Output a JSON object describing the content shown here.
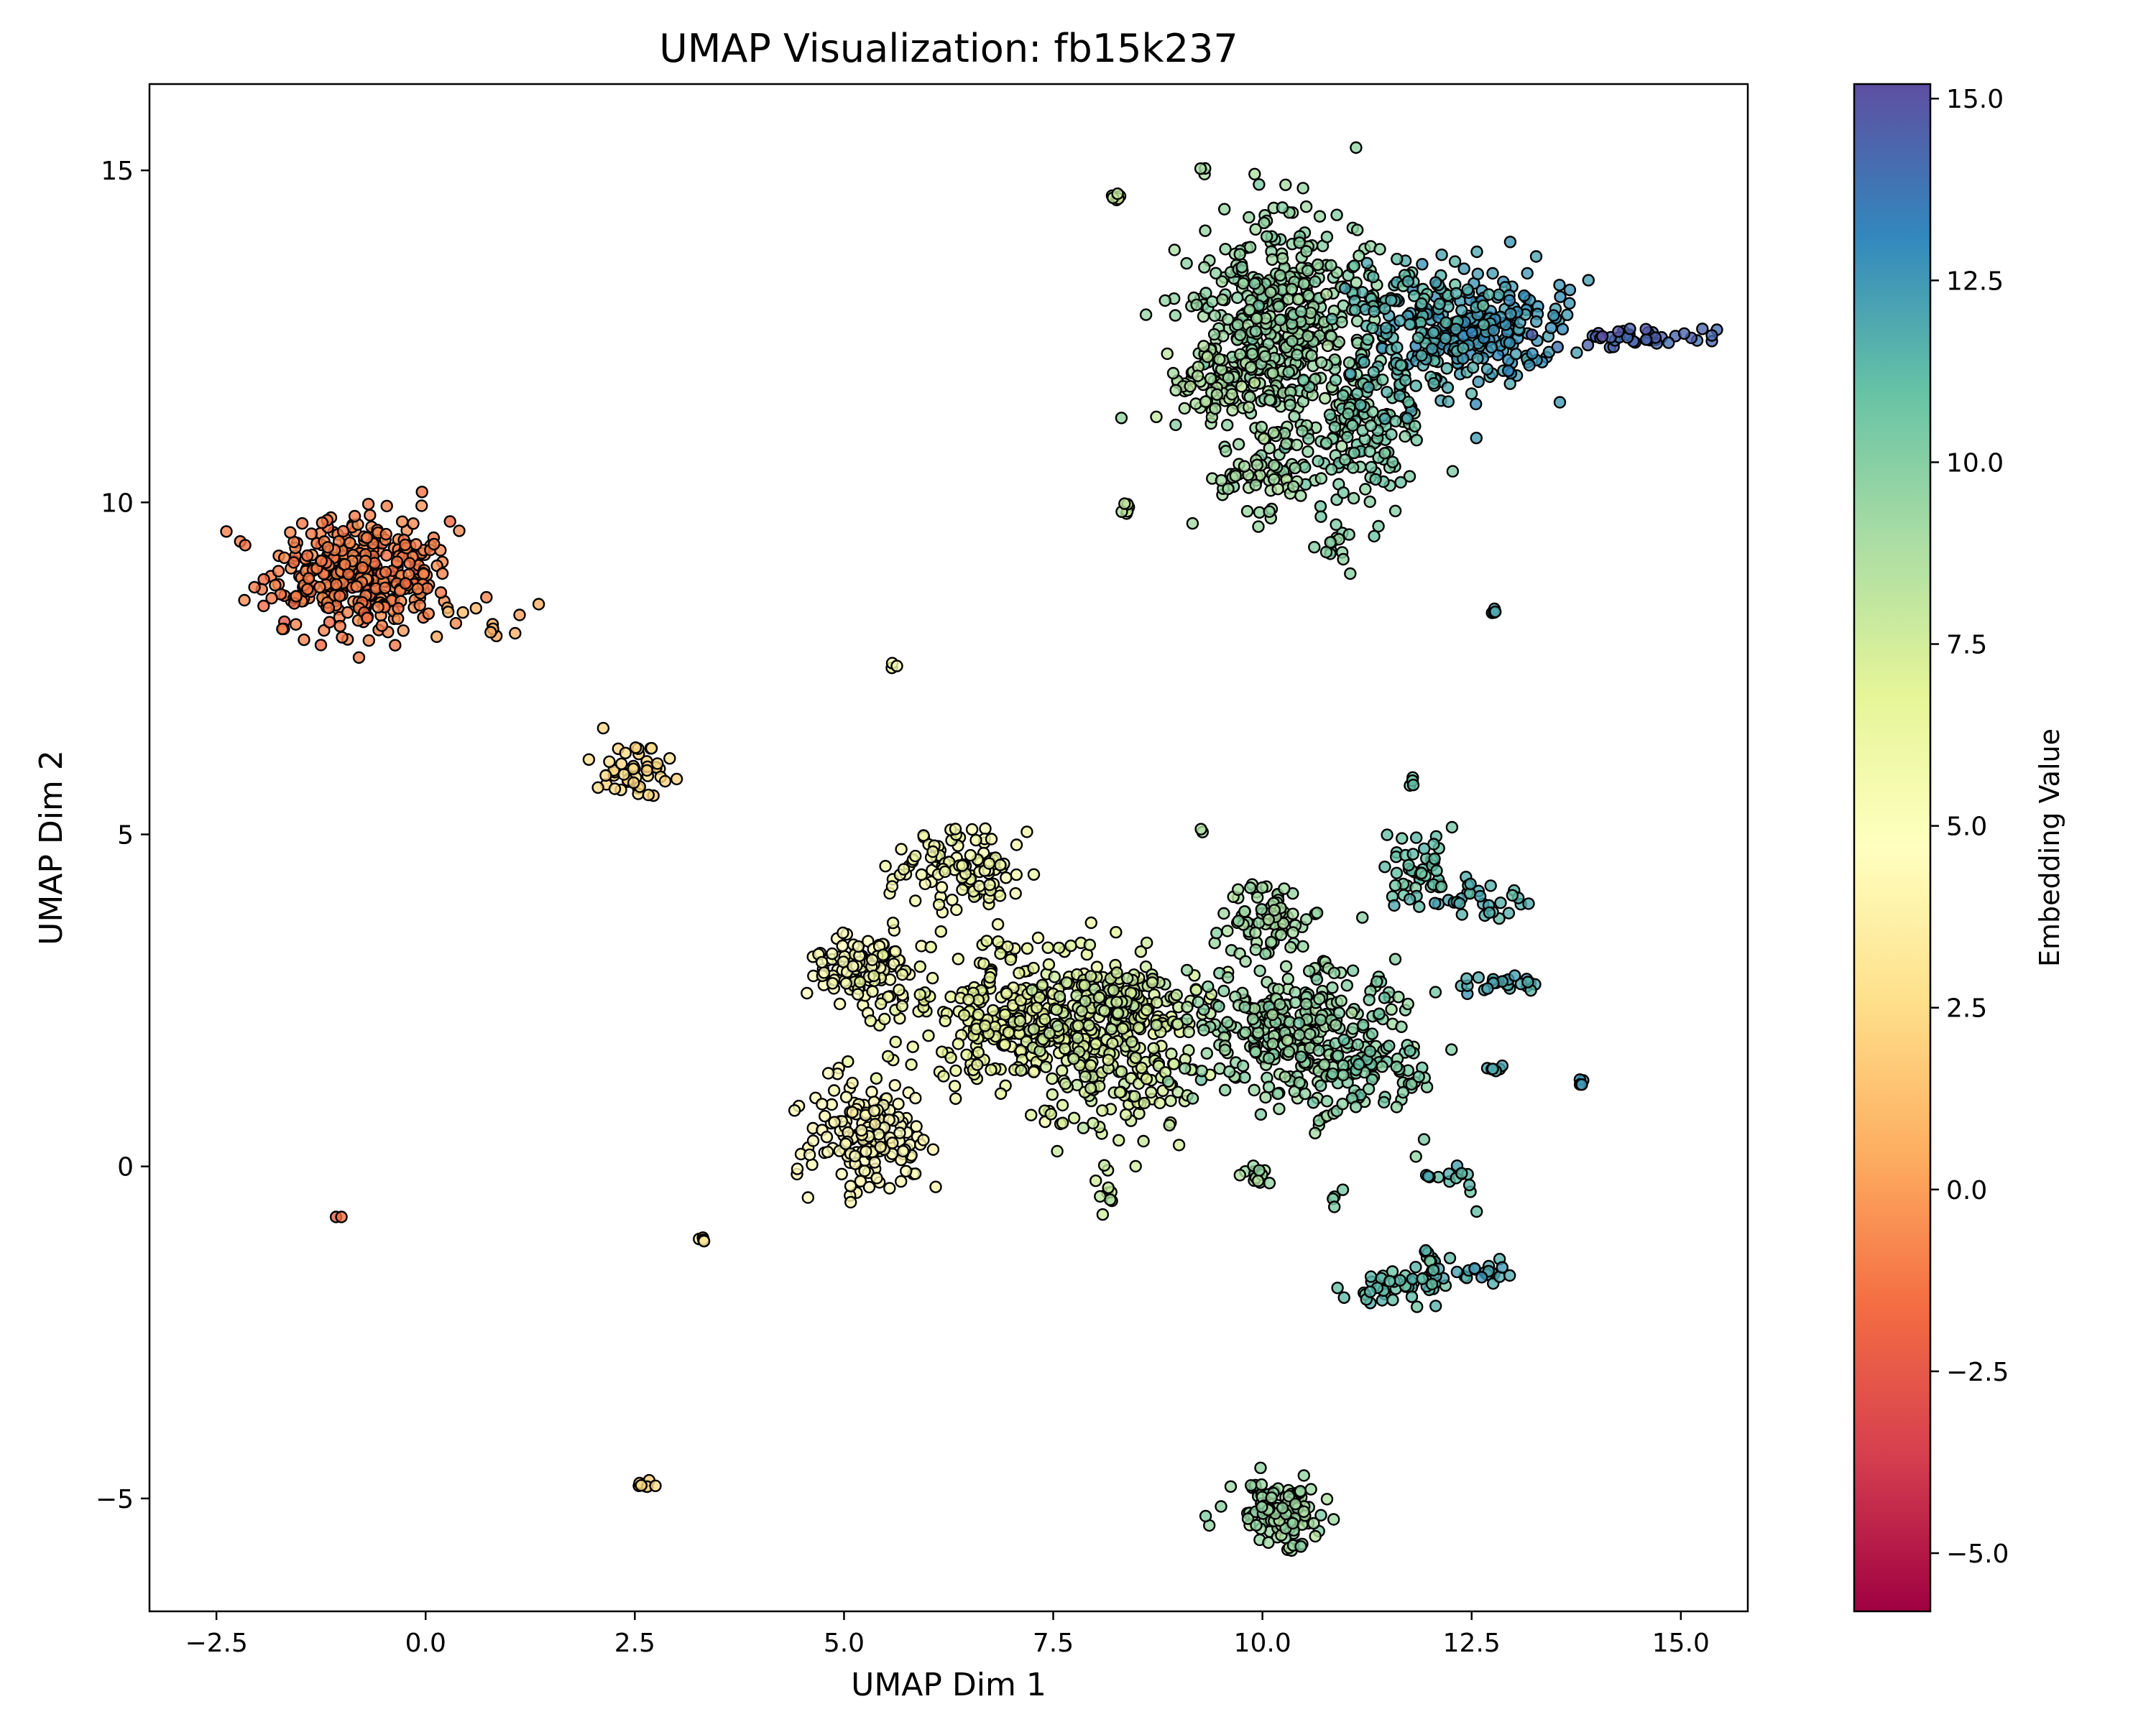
{
  "chart_data": {
    "type": "scatter",
    "title": "UMAP Visualization: fb15k237",
    "xlabel": "UMAP Dim 1",
    "ylabel": "UMAP Dim 2",
    "xlim": [
      -3.3,
      15.8
    ],
    "ylim": [
      -6.7,
      16.3
    ],
    "x_ticks": [
      -2.5,
      0.0,
      2.5,
      5.0,
      7.5,
      10.0,
      12.5,
      15.0
    ],
    "x_tick_labels": [
      "−2.5",
      "0.0",
      "2.5",
      "5.0",
      "7.5",
      "10.0",
      "12.5",
      "15.0"
    ],
    "y_ticks": [
      -5,
      0,
      5,
      10,
      15
    ],
    "y_tick_labels": [
      "−5",
      "0",
      "5",
      "10",
      "15"
    ],
    "grid": false,
    "colormap": "Spectral",
    "marker_edge_color": "#000000",
    "colorbar": {
      "label": "Embedding Value",
      "range": [
        -5.8,
        15.2
      ],
      "ticks": [
        -5.0,
        -2.5,
        0.0,
        2.5,
        5.0,
        7.5,
        10.0,
        12.5,
        15.0
      ],
      "tick_labels": [
        "−5.0",
        "−2.5",
        "0.0",
        "2.5",
        "5.0",
        "7.5",
        "10.0",
        "12.5",
        "15.0"
      ],
      "colors": [
        "#9e0142",
        "#d53e4f",
        "#f46d43",
        "#fdae61",
        "#fee08b",
        "#ffffbf",
        "#e6f598",
        "#abdda4",
        "#66c2a5",
        "#3288bd",
        "#5e4fa2"
      ]
    },
    "clusters": [
      {
        "cx": -0.8,
        "cy": 8.9,
        "sx": 0.55,
        "sy": 0.45,
        "n": 360,
        "value": -1.0
      },
      {
        "cx": 0.6,
        "cy": 8.2,
        "sx": 0.25,
        "sy": 0.2,
        "n": 12,
        "value": 0.4
      },
      {
        "cx": 2.5,
        "cy": 6.0,
        "sx": 0.25,
        "sy": 0.2,
        "n": 45,
        "value": 2.3
      },
      {
        "cx": -1.05,
        "cy": -0.75,
        "sx": 0.02,
        "sy": 0.02,
        "n": 2,
        "value": -1.0
      },
      {
        "cx": 2.6,
        "cy": -4.8,
        "sx": 0.05,
        "sy": 0.05,
        "n": 8,
        "value": 2.5
      },
      {
        "cx": 3.3,
        "cy": -1.1,
        "sx": 0.03,
        "sy": 0.03,
        "n": 4,
        "value": 3.3
      },
      {
        "cx": 5.6,
        "cy": 7.55,
        "sx": 0.02,
        "sy": 0.02,
        "n": 3,
        "value": 5.5
      },
      {
        "cx": 5.3,
        "cy": 0.4,
        "sx": 0.35,
        "sy": 0.45,
        "n": 170,
        "value": 4.5
      },
      {
        "cx": 5.2,
        "cy": 3.0,
        "sx": 0.35,
        "sy": 0.25,
        "n": 110,
        "value": 5.0
      },
      {
        "cx": 6.4,
        "cy": 4.5,
        "sx": 0.4,
        "sy": 0.35,
        "n": 110,
        "value": 5.8
      },
      {
        "cx": 6.9,
        "cy": 2.3,
        "sx": 0.7,
        "sy": 0.55,
        "n": 260,
        "value": 6.5
      },
      {
        "cx": 8.2,
        "cy": 1.8,
        "sx": 0.55,
        "sy": 0.6,
        "n": 230,
        "value": 7.5
      },
      {
        "cx": 8.4,
        "cy": 2.5,
        "sx": 0.5,
        "sy": 0.3,
        "n": 100,
        "value": 7.8
      },
      {
        "cx": 10.1,
        "cy": 3.8,
        "sx": 0.25,
        "sy": 0.25,
        "n": 70,
        "value": 9.2
      },
      {
        "cx": 10.4,
        "cy": 2.0,
        "sx": 0.6,
        "sy": 0.6,
        "n": 280,
        "value": 9.5
      },
      {
        "cx": 11.3,
        "cy": 1.5,
        "sx": 0.4,
        "sy": 0.5,
        "n": 90,
        "value": 10.3
      },
      {
        "cx": 11.9,
        "cy": 4.4,
        "sx": 0.2,
        "sy": 0.25,
        "n": 50,
        "value": 11.0
      },
      {
        "cx": 12.6,
        "cy": 4.0,
        "sx": 0.3,
        "sy": 0.15,
        "n": 30,
        "value": 11.6
      },
      {
        "cx": 12.8,
        "cy": 2.75,
        "sx": 0.3,
        "sy": 0.05,
        "n": 25,
        "value": 12.0
      },
      {
        "cx": 12.8,
        "cy": 1.45,
        "sx": 0.05,
        "sy": 0.04,
        "n": 6,
        "value": 11.8
      },
      {
        "cx": 13.8,
        "cy": 1.25,
        "sx": 0.03,
        "sy": 0.03,
        "n": 4,
        "value": 12.6
      },
      {
        "cx": 11.8,
        "cy": 5.75,
        "sx": 0.04,
        "sy": 0.05,
        "n": 4,
        "value": 10.8
      },
      {
        "cx": 9.25,
        "cy": 5.05,
        "sx": 0.02,
        "sy": 0.02,
        "n": 2,
        "value": 8.8
      },
      {
        "cx": 8.1,
        "cy": -0.3,
        "sx": 0.05,
        "sy": 0.25,
        "n": 10,
        "value": 8.0
      },
      {
        "cx": 9.9,
        "cy": -0.15,
        "sx": 0.1,
        "sy": 0.1,
        "n": 14,
        "value": 9.2
      },
      {
        "cx": 10.9,
        "cy": -0.45,
        "sx": 0.04,
        "sy": 0.06,
        "n": 4,
        "value": 10.0
      },
      {
        "cx": 12.2,
        "cy": -0.1,
        "sx": 0.2,
        "sy": 0.25,
        "n": 14,
        "value": 11.5
      },
      {
        "cx": 11.7,
        "cy": -1.8,
        "sx": 0.4,
        "sy": 0.12,
        "n": 40,
        "value": 11.2
      },
      {
        "cx": 12.0,
        "cy": -1.45,
        "sx": 0.1,
        "sy": 0.12,
        "n": 20,
        "value": 11.3
      },
      {
        "cx": 12.7,
        "cy": -1.6,
        "sx": 0.15,
        "sy": 0.08,
        "n": 16,
        "value": 12.0
      },
      {
        "cx": 10.2,
        "cy": -5.2,
        "sx": 0.25,
        "sy": 0.22,
        "n": 130,
        "value": 9.3
      },
      {
        "cx": 10.3,
        "cy": 12.6,
        "sx": 0.55,
        "sy": 0.9,
        "n": 480,
        "value": 9.5
      },
      {
        "cx": 9.4,
        "cy": 11.8,
        "sx": 0.3,
        "sy": 0.3,
        "n": 60,
        "value": 8.7
      },
      {
        "cx": 11.2,
        "cy": 11.0,
        "sx": 0.35,
        "sy": 0.6,
        "n": 110,
        "value": 10.5
      },
      {
        "cx": 10.0,
        "cy": 10.4,
        "sx": 0.3,
        "sy": 0.35,
        "n": 50,
        "value": 9.3
      },
      {
        "cx": 10.9,
        "cy": 9.4,
        "sx": 0.1,
        "sy": 0.2,
        "n": 14,
        "value": 10.0
      },
      {
        "cx": 12.6,
        "cy": 12.6,
        "sx": 0.5,
        "sy": 0.4,
        "n": 200,
        "value": 12.5
      },
      {
        "cx": 11.8,
        "cy": 13.0,
        "sx": 0.45,
        "sy": 0.3,
        "n": 70,
        "value": 11.5
      },
      {
        "cx": 14.5,
        "cy": 12.5,
        "sx": 0.4,
        "sy": 0.08,
        "n": 40,
        "value": 14.4
      },
      {
        "cx": 11.8,
        "cy": 12.1,
        "sx": 0.5,
        "sy": 0.35,
        "n": 60,
        "value": 11.6
      },
      {
        "cx": 8.25,
        "cy": 14.6,
        "sx": 0.06,
        "sy": 0.04,
        "n": 6,
        "value": 7.8
      },
      {
        "cx": 8.35,
        "cy": 9.95,
        "sx": 0.05,
        "sy": 0.05,
        "n": 6,
        "value": 7.9
      },
      {
        "cx": 12.75,
        "cy": 8.35,
        "sx": 0.03,
        "sy": 0.04,
        "n": 4,
        "value": 12.0
      },
      {
        "cx": 9.3,
        "cy": 15.0,
        "sx": 0.03,
        "sy": 0.03,
        "n": 3,
        "value": 8.8
      }
    ]
  }
}
